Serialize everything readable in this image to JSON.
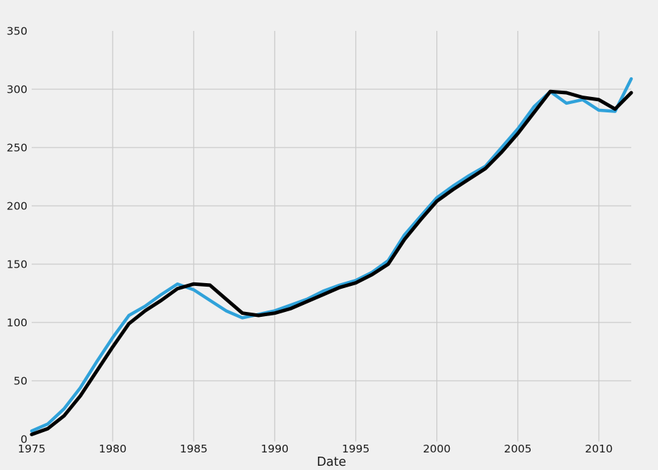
{
  "style": {
    "background": "#f0f0f0",
    "gridline_color": "#cbcbcb",
    "text_color": "#1a1a1a"
  },
  "chart_data": {
    "type": "line",
    "title": "",
    "xlabel": "Date",
    "ylabel": "",
    "grid": true,
    "legend": "none",
    "xlim": [
      1975,
      2012
    ],
    "ylim": [
      0,
      350
    ],
    "x_tick_labels": [
      "1975",
      "1980",
      "1985",
      "1990",
      "1995",
      "2000",
      "2005",
      "2010"
    ],
    "x_tick_values": [
      1975,
      1980,
      1985,
      1990,
      1995,
      2000,
      2005,
      2010
    ],
    "y_tick_labels": [
      "0",
      "50",
      "100",
      "150",
      "200",
      "250",
      "300",
      "350"
    ],
    "y_tick_values": [
      0,
      50,
      100,
      150,
      200,
      250,
      300,
      350
    ],
    "x_gridline_values": [
      1980,
      1985,
      1990,
      1995,
      2000,
      2005,
      2010
    ],
    "y_gridline_values": [
      50,
      100,
      150,
      200,
      250,
      300
    ],
    "x": [
      1975,
      1976,
      1977,
      1978,
      1979,
      1980,
      1981,
      1982,
      1983,
      1984,
      1985,
      1986,
      1987,
      1988,
      1989,
      1990,
      1991,
      1992,
      1993,
      1994,
      1995,
      1996,
      1997,
      1998,
      1999,
      2000,
      2001,
      2002,
      2003,
      2004,
      2005,
      2006,
      2007,
      2008,
      2009,
      2010,
      2011,
      2012
    ],
    "series": [
      {
        "name": "blue",
        "color": "#30a2da",
        "line_width": 4.5,
        "values": [
          7,
          13,
          26,
          44,
          66,
          87,
          106,
          114,
          124,
          133,
          128,
          119,
          110,
          104,
          107,
          110,
          115,
          120,
          127,
          132,
          136,
          143,
          153,
          175,
          191,
          207,
          217,
          226,
          234,
          250,
          266,
          285,
          298,
          288,
          291,
          282,
          281,
          309
        ]
      },
      {
        "name": "black",
        "color": "#000000",
        "line_width": 5,
        "values": [
          4,
          9,
          20,
          37,
          58,
          79,
          99,
          110,
          119,
          129,
          133,
          132,
          120,
          108,
          106,
          108,
          112,
          118,
          124,
          130,
          134,
          141,
          150,
          171,
          188,
          204,
          214,
          223,
          232,
          246,
          262,
          280,
          298,
          297,
          293,
          291,
          283,
          297
        ]
      }
    ]
  }
}
